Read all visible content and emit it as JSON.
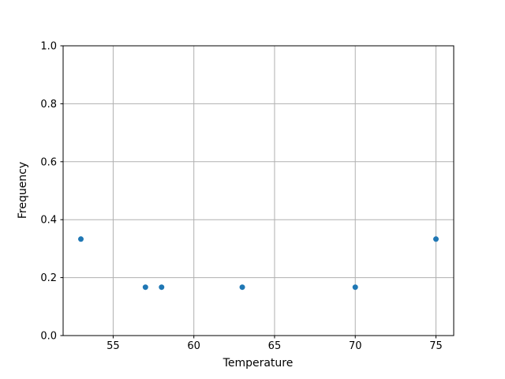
{
  "chart_data": {
    "type": "scatter",
    "title": "",
    "xlabel": "Temperature",
    "ylabel": "Frequency",
    "xlim": [
      51.9,
      76.1
    ],
    "ylim": [
      0.0,
      1.0
    ],
    "x_ticks": [
      55,
      60,
      65,
      70,
      75
    ],
    "x_tick_labels": [
      "55",
      "60",
      "65",
      "70",
      "75"
    ],
    "y_ticks": [
      0.0,
      0.2,
      0.4,
      0.6,
      0.8,
      1.0
    ],
    "y_tick_labels": [
      "0.0",
      "0.2",
      "0.4",
      "0.6",
      "0.8",
      "1.0"
    ],
    "grid": true,
    "legend": null,
    "points": [
      {
        "x": 53,
        "y": 0.333
      },
      {
        "x": 57,
        "y": 0.167
      },
      {
        "x": 58,
        "y": 0.167
      },
      {
        "x": 63,
        "y": 0.167
      },
      {
        "x": 70,
        "y": 0.167
      },
      {
        "x": 75,
        "y": 0.333
      }
    ],
    "colors": {
      "marker": "#1f77b4",
      "grid": "#b0b0b0",
      "spine": "#000000",
      "background": "#ffffff",
      "text": "#000000"
    }
  }
}
